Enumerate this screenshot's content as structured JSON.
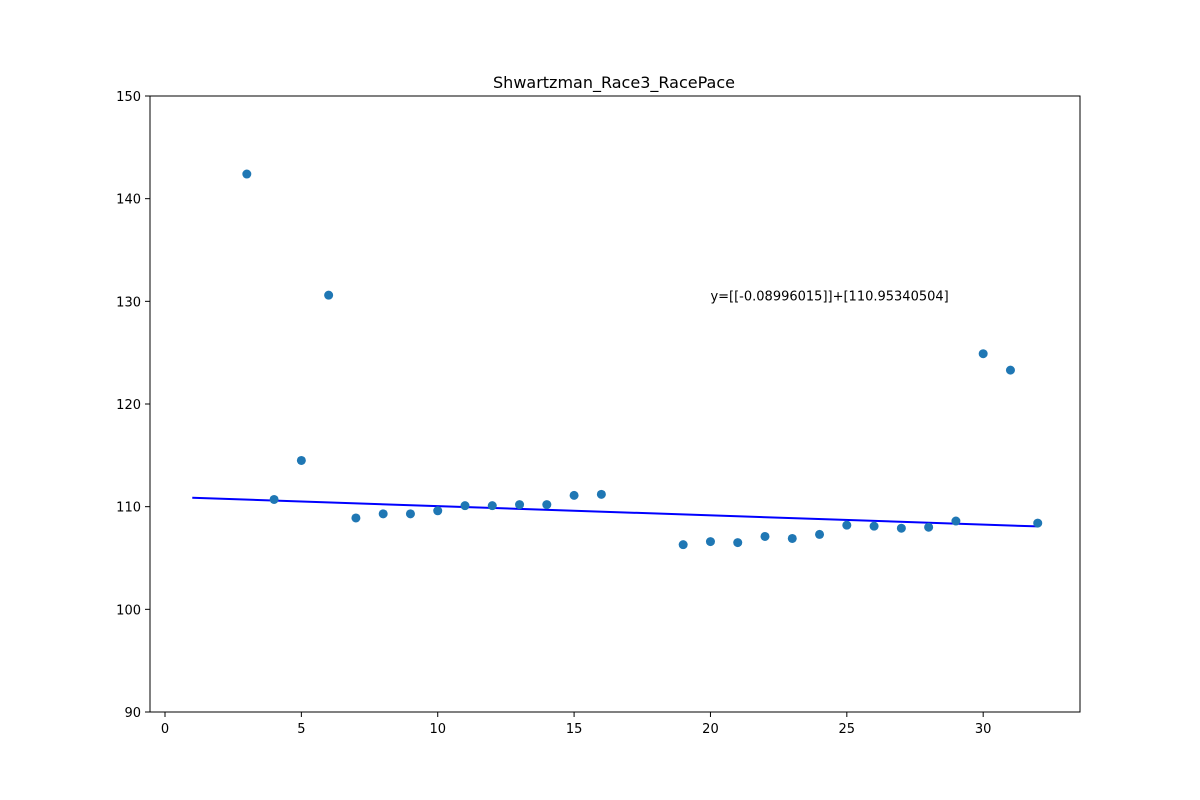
{
  "chart_data": {
    "type": "scatter",
    "title": "Shwartzman_Race3_RacePace",
    "xlabel": "",
    "ylabel": "",
    "xlim": [
      -0.55,
      33.55
    ],
    "ylim": [
      90,
      150
    ],
    "xticks": [
      0,
      5,
      10,
      15,
      20,
      25,
      30
    ],
    "yticks": [
      90,
      100,
      110,
      120,
      130,
      140,
      150
    ],
    "grid": false,
    "points": {
      "x": [
        3,
        4,
        5,
        6,
        7,
        8,
        9,
        10,
        11,
        12,
        13,
        14,
        15,
        16,
        19,
        20,
        21,
        22,
        23,
        24,
        25,
        26,
        27,
        28,
        29,
        30,
        31,
        32
      ],
      "y": [
        142.4,
        110.7,
        114.5,
        130.6,
        108.9,
        109.3,
        109.3,
        109.6,
        110.1,
        110.1,
        110.2,
        110.2,
        111.1,
        111.2,
        106.3,
        106.6,
        106.5,
        107.1,
        106.9,
        107.3,
        108.2,
        108.1,
        107.9,
        108.0,
        108.6,
        124.9,
        123.3,
        108.4
      ],
      "color": "#1f77b4"
    },
    "fit_line": {
      "slope": -0.08996015,
      "intercept": 110.95340504,
      "x_range": [
        1,
        32
      ],
      "color": "#0000ff"
    },
    "annotation": {
      "text": "y=[[-0.08996015]]+[110.95340504]",
      "x": 20,
      "y": 130
    }
  }
}
